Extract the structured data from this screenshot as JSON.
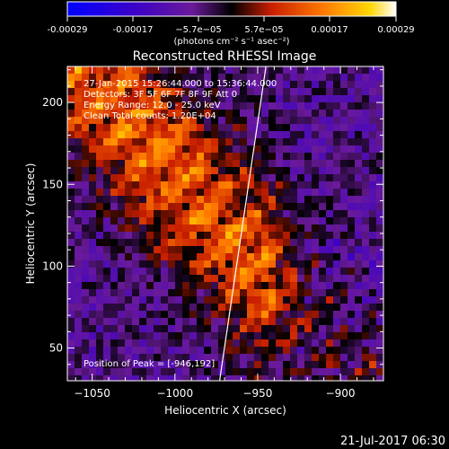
{
  "colorbar": {
    "ticks": [
      "-0.00029",
      "-0.00017",
      "−5.7e−05",
      "5.7e−05",
      "0.00017",
      "0.00029"
    ],
    "units": "(photons cm⁻² s⁻¹ asec⁻²)"
  },
  "chart_data": {
    "type": "heatmap",
    "title": "Reconstructed RHESSI Image",
    "xlabel": "Heliocentric X (arcsec)",
    "ylabel": "Heliocentric Y (arcsec)",
    "xlim": [
      -1065,
      -874
    ],
    "ylim": [
      30,
      222
    ],
    "xticks": [
      -1050,
      -1000,
      -950,
      -900
    ],
    "xtick_labels": [
      "−1050",
      "−1000",
      "−950",
      "−900"
    ],
    "yticks": [
      50,
      100,
      150,
      200
    ],
    "ytick_labels": [
      "50",
      "100",
      "150",
      "200"
    ],
    "colorbar_range": [
      -0.00029,
      0.00029
    ],
    "annotations": [
      "27-Jan-2015 15:26:44.000 to 15:36:44.000",
      "Detectors: 3F 5F 6F 7F 8F 9F  Att 0",
      "Energy Range: 12.0 - 25.0 keV",
      "Clean     Total counts: 1.20E+04"
    ],
    "peak_label": "Position of Peak = [-946,192]",
    "peak": [
      -946,
      192
    ],
    "limb_line": {
      "x": [
        -973,
        -945
      ],
      "y": [
        30,
        222
      ]
    }
  },
  "footer": {
    "date": "21-Jul-2017 06:30"
  }
}
